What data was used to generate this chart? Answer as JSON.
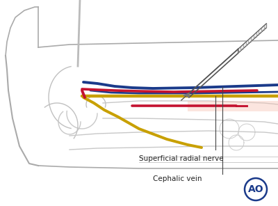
{
  "bg_color": "#ffffff",
  "labels": {
    "superficial_radial_nerve": "Superficial radial nerve",
    "cephalic_vein": "Cephalic vein"
  },
  "nerve_color": "#c8a000",
  "artery_color": "#c41230",
  "vein_color": "#1a3a8a",
  "bone_color": "#cccccc",
  "line_color": "#999999",
  "ao_color": "#1a3a8a",
  "font_size": 7.5,
  "lw_nerve": 3.2,
  "lw_vein": 2.8,
  "lw_artery": 2.6,
  "lw_bone": 1.0
}
